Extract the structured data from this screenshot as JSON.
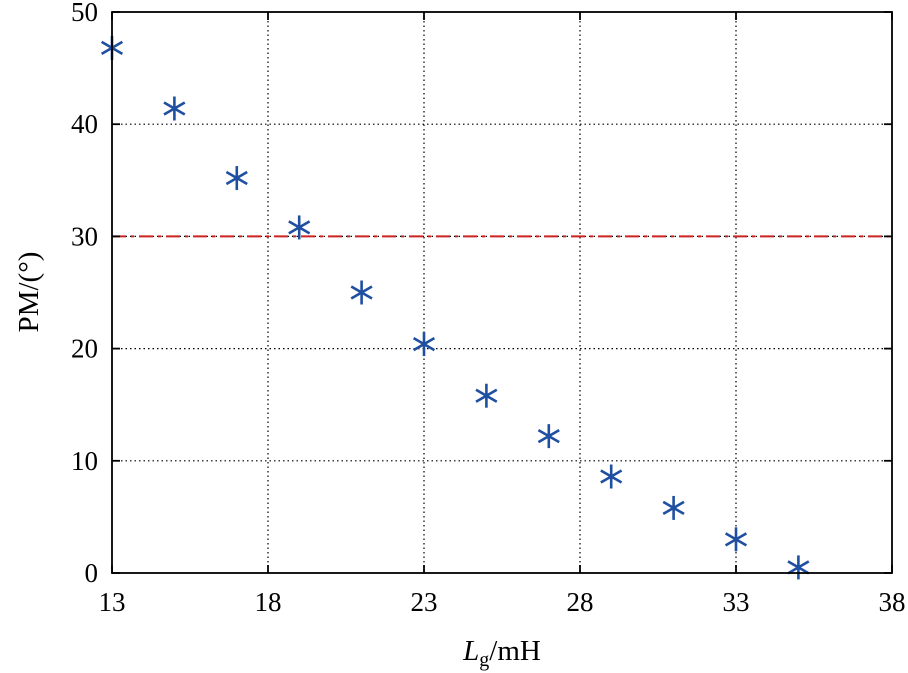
{
  "chart_data": {
    "type": "scatter",
    "xlabel_main": "L",
    "xlabel_sub": "g",
    "xlabel_unit": "/mH",
    "ylabel": "PM/(°)",
    "xlim": [
      13,
      38
    ],
    "ylim": [
      0,
      50
    ],
    "xticks": [
      13,
      18,
      23,
      28,
      33,
      38
    ],
    "yticks": [
      0,
      10,
      20,
      30,
      40,
      50
    ],
    "grid": true,
    "marker": "asterisk",
    "colors": {
      "points": "#1f4fa0",
      "reference": "#cc2222"
    },
    "points": [
      {
        "x": 13,
        "y": 46.8
      },
      {
        "x": 15,
        "y": 41.4
      },
      {
        "x": 17,
        "y": 35.2
      },
      {
        "x": 19,
        "y": 30.8
      },
      {
        "x": 21,
        "y": 25.0
      },
      {
        "x": 23,
        "y": 20.4
      },
      {
        "x": 25,
        "y": 15.8
      },
      {
        "x": 27,
        "y": 12.2
      },
      {
        "x": 29,
        "y": 8.6
      },
      {
        "x": 31,
        "y": 5.8
      },
      {
        "x": 33,
        "y": 3.0
      },
      {
        "x": 35,
        "y": 0.5
      }
    ],
    "reference_line": {
      "y": 30,
      "style": "dash-dot"
    }
  }
}
